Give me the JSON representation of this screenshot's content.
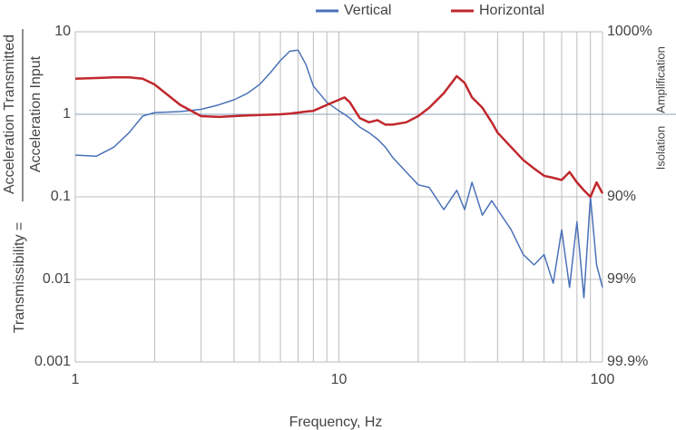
{
  "chart_data": {
    "type": "line",
    "x_label": "Frequency, Hz",
    "y_label_prefix": "Transmissibility =",
    "y_label_numerator": "Acceleration Transmitted",
    "y_label_denominator": "Acceleration Input",
    "annotations": [
      "Amplification",
      "Isolation"
    ],
    "x": [
      1,
      1.2,
      1.4,
      1.6,
      1.8,
      2,
      2.5,
      3,
      3.5,
      4,
      4.5,
      5,
      5.5,
      6,
      6.5,
      7,
      7.5,
      8,
      9,
      10,
      10.5,
      11,
      12,
      13,
      14,
      15,
      16,
      18,
      20,
      22,
      25,
      28,
      30,
      32,
      35,
      38,
      40,
      45,
      50,
      55,
      60,
      65,
      70,
      75,
      80,
      85,
      90,
      95,
      100
    ],
    "series": [
      {
        "name": "Vertical",
        "color": "#4a72b8",
        "values": [
          0.32,
          0.31,
          0.4,
          0.6,
          0.95,
          1.05,
          1.08,
          1.15,
          1.3,
          1.5,
          1.8,
          2.3,
          3.2,
          4.5,
          5.8,
          6,
          4,
          2.2,
          1.4,
          1.1,
          1.0,
          0.9,
          0.7,
          0.6,
          0.5,
          0.4,
          0.3,
          0.2,
          0.14,
          0.13,
          0.07,
          0.12,
          0.07,
          0.15,
          0.06,
          0.09,
          0.07,
          0.04,
          0.02,
          0.015,
          0.02,
          0.009,
          0.04,
          0.008,
          0.05,
          0.006,
          0.1,
          0.015,
          0.008
        ]
      },
      {
        "name": "Horizontal",
        "color": "#c0282d",
        "values": [
          2.7,
          2.75,
          2.8,
          2.8,
          2.7,
          2.3,
          1.3,
          0.95,
          0.93,
          0.95,
          0.97,
          0.98,
          0.99,
          1.0,
          1.02,
          1.05,
          1.08,
          1.1,
          1.3,
          1.5,
          1.6,
          1.4,
          0.9,
          0.8,
          0.85,
          0.75,
          0.75,
          0.8,
          0.95,
          1.2,
          1.8,
          2.9,
          2.4,
          1.6,
          1.2,
          0.8,
          0.6,
          0.4,
          0.28,
          0.22,
          0.18,
          0.17,
          0.16,
          0.2,
          0.15,
          0.12,
          0.1,
          0.15,
          0.11
        ]
      }
    ],
    "xlim": [
      1,
      100
    ],
    "xticks": [
      1,
      10,
      100
    ],
    "xgrid": [
      2,
      3,
      4,
      5,
      6,
      7,
      8,
      9,
      20,
      30,
      40,
      50,
      60,
      70,
      80,
      90
    ],
    "ylim": [
      0.001,
      10
    ],
    "yticks": [
      0.001,
      0.01,
      0.1,
      1,
      10
    ],
    "y2lim": [
      0.001,
      10
    ],
    "y2ticks": [
      {
        "value": 0.001,
        "label": "99.9%"
      },
      {
        "value": 0.01,
        "label": "99%"
      },
      {
        "value": 0.1,
        "label": "90%"
      },
      {
        "value": 10,
        "label": "1000%"
      }
    ],
    "xlog": true,
    "ylog": true,
    "grid": true,
    "legend": "top"
  }
}
